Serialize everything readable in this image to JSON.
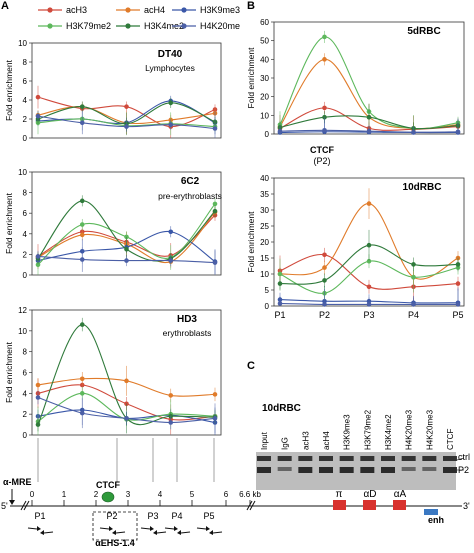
{
  "legend": [
    {
      "name": "acH3",
      "color": "#d04a3c"
    },
    {
      "name": "acH4",
      "color": "#e07b2a"
    },
    {
      "name": "H3K9me3",
      "color": "#3a57a8"
    },
    {
      "name": "H3K79me2",
      "color": "#5db85c"
    },
    {
      "name": "H3K4me2",
      "color": "#2f7a3b"
    },
    {
      "name": "H4K20me",
      "color": "#4b5fa6"
    }
  ],
  "chart_data": [
    {
      "id": "dt40",
      "type": "line",
      "panel_label": "A",
      "title": "DT40",
      "subtitle": "Lymphocytes",
      "ylabel": "Fold enrichment",
      "ylim": [
        0,
        10
      ],
      "yticks": [
        0,
        2,
        4,
        6,
        8,
        10
      ],
      "series": [
        {
          "name": "acH3",
          "values": [
            4.3,
            3.1,
            3.3,
            1.2,
            3.0
          ]
        },
        {
          "name": "acH4",
          "values": [
            2.4,
            3.3,
            1.6,
            1.9,
            2.6
          ]
        },
        {
          "name": "H3K9me3",
          "values": [
            1.8,
            2.0,
            1.6,
            3.9,
            1.6
          ]
        },
        {
          "name": "H3K79me2",
          "values": [
            1.6,
            2.0,
            1.3,
            1.5,
            1.2
          ]
        },
        {
          "name": "H3K4me2",
          "values": [
            2.0,
            3.3,
            1.5,
            3.7,
            1.7
          ]
        },
        {
          "name": "H4K20me",
          "values": [
            2.3,
            1.6,
            1.2,
            1.4,
            1.0
          ]
        }
      ]
    },
    {
      "id": "6c2",
      "type": "line",
      "title": "6C2",
      "subtitle": "pre-erythroblasts",
      "ylabel": "Fold enrichment",
      "ylim": [
        0,
        10
      ],
      "yticks": [
        0,
        2,
        4,
        6,
        8,
        10
      ],
      "series": [
        {
          "name": "acH3",
          "values": [
            1.8,
            4.2,
            3.2,
            1.9,
            5.8
          ]
        },
        {
          "name": "acH4",
          "values": [
            1.7,
            3.9,
            3.0,
            1.3,
            6.1
          ]
        },
        {
          "name": "H3K9me3",
          "values": [
            1.4,
            2.3,
            2.7,
            4.2,
            1.3
          ]
        },
        {
          "name": "H3K79me2",
          "values": [
            1.0,
            4.9,
            3.7,
            1.7,
            6.9
          ]
        },
        {
          "name": "H3K4me2",
          "values": [
            1.6,
            7.2,
            2.5,
            1.6,
            6.2
          ]
        },
        {
          "name": "H4K20me",
          "values": [
            1.8,
            1.5,
            1.4,
            1.4,
            1.2
          ]
        }
      ]
    },
    {
      "id": "hd3",
      "type": "line",
      "title": "HD3",
      "subtitle": "erythroblasts",
      "ylabel": "Fold enrichment",
      "ylim": [
        0,
        12
      ],
      "yticks": [
        0,
        2,
        4,
        6,
        8,
        10,
        12
      ],
      "series": [
        {
          "name": "acH3",
          "values": [
            4.0,
            4.8,
            3.0,
            1.5,
            1.8
          ]
        },
        {
          "name": "acH4",
          "values": [
            4.8,
            5.4,
            5.2,
            3.8,
            3.9
          ]
        },
        {
          "name": "H3K9me3",
          "values": [
            1.8,
            2.4,
            1.6,
            1.9,
            1.2
          ]
        },
        {
          "name": "H3K79me2",
          "values": [
            1.3,
            4.0,
            1.5,
            2.0,
            1.8
          ]
        },
        {
          "name": "H3K4me2",
          "values": [
            1.0,
            10.6,
            1.6,
            1.8,
            1.7
          ]
        },
        {
          "name": "H4K20me",
          "values": [
            3.6,
            2.1,
            1.6,
            1.2,
            1.6
          ]
        }
      ]
    },
    {
      "id": "5drbc",
      "type": "line",
      "panel_label": "B",
      "title": "5dRBC",
      "ylabel": "Fold enrichment",
      "ylim": [
        0,
        60
      ],
      "yticks": [
        0,
        10,
        20,
        30,
        40,
        50,
        60
      ],
      "series": [
        {
          "name": "acH3",
          "values": [
            3.0,
            14.0,
            3.0,
            2.5,
            4.0
          ]
        },
        {
          "name": "acH4",
          "values": [
            4.0,
            40.0,
            9.0,
            3.0,
            5.0
          ]
        },
        {
          "name": "H3K9me3",
          "values": [
            0.8,
            1.2,
            1.0,
            0.8,
            0.8
          ]
        },
        {
          "name": "H3K79me2",
          "values": [
            5.0,
            52.0,
            12.0,
            3.0,
            6.0
          ]
        },
        {
          "name": "H3K4me2",
          "values": [
            3.5,
            9.0,
            9.0,
            3.0,
            4.5
          ]
        },
        {
          "name": "H4K20me",
          "values": [
            1.5,
            2.0,
            1.5,
            1.0,
            1.2
          ]
        }
      ],
      "annotations": [
        "CTCF",
        "(P2)"
      ]
    },
    {
      "id": "10drbc",
      "type": "line",
      "title": "10dRBC",
      "ylabel": "Fold enrichment",
      "ylim": [
        0,
        40
      ],
      "yticks": [
        0,
        5,
        10,
        15,
        20,
        25,
        30,
        35,
        40
      ],
      "categories": [
        "P1",
        "P2",
        "P3",
        "P4",
        "P5"
      ],
      "series": [
        {
          "name": "acH3",
          "values": [
            11.0,
            16.0,
            6.0,
            6.0,
            7.0
          ]
        },
        {
          "name": "acH4",
          "values": [
            10.0,
            12.0,
            32.0,
            9.0,
            15.0
          ]
        },
        {
          "name": "H3K9me3",
          "values": [
            2.0,
            1.5,
            1.5,
            1.0,
            1.0
          ]
        },
        {
          "name": "H3K79me2",
          "values": [
            10.0,
            4.0,
            14.0,
            9.0,
            12.0
          ]
        },
        {
          "name": "H3K4me2",
          "values": [
            7.0,
            8.0,
            19.0,
            13.0,
            13.0
          ]
        },
        {
          "name": "H4K20me",
          "values": [
            0.8,
            0.5,
            0.5,
            0.5,
            0.5
          ]
        }
      ]
    }
  ],
  "gel": {
    "panel_label": "C",
    "title": "10dRBC",
    "lanes": [
      "Input",
      "IgG",
      "acH3",
      "acH4",
      "H3K9me3",
      "H3K79me2",
      "H3K4me2",
      "H4K20me3",
      "H4K20me3",
      "CTCF"
    ],
    "band_labels": [
      "ctrl",
      "P2"
    ]
  },
  "map": {
    "mre_label": "α-MRE",
    "five_prime": "5'",
    "three_prime": "3'",
    "scale_ticks": [
      "0",
      "1",
      "2",
      "3",
      "4",
      "5",
      "6",
      "6.6 kb"
    ],
    "ctcf_label": "CTCF",
    "regions": [
      "P1",
      "P2",
      "P3",
      "P4",
      "P5"
    ],
    "ehs_label": "αEHS-1.4",
    "genes": [
      "π",
      "αD",
      "αA"
    ],
    "enh_label": "enh"
  }
}
